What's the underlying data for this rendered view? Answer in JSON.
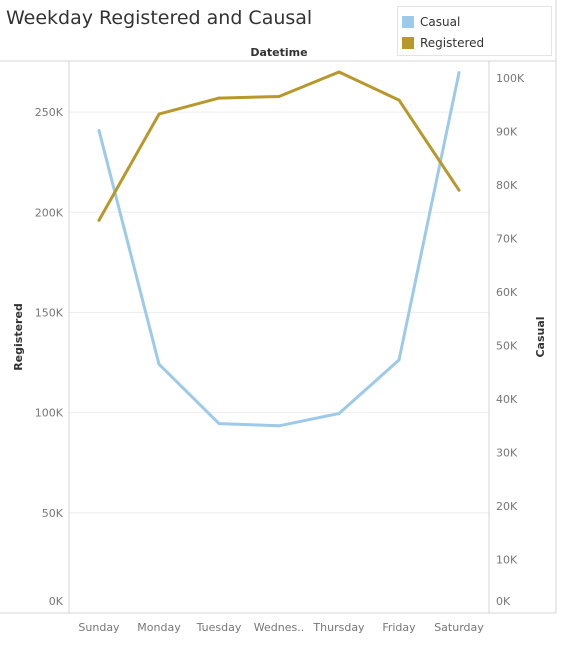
{
  "header": {
    "title": "Weekday Registered and Causal"
  },
  "legend": {
    "items": [
      {
        "label": "Casual",
        "color": "#9ecae9"
      },
      {
        "label": "Registered",
        "color": "#b8982a"
      }
    ]
  },
  "chart_data": {
    "type": "line",
    "title": "Weekday Registered and Causal",
    "top_label": "Datetime",
    "categories": [
      "Sunday",
      "Monday",
      "Tuesday",
      "Wednes..",
      "Thursday",
      "Friday",
      "Saturday"
    ],
    "left_axis": {
      "label": "Registered",
      "range": [
        0,
        275000
      ],
      "ticks": [
        0,
        50000,
        100000,
        150000,
        200000,
        250000
      ],
      "tick_labels": [
        "0K",
        "50K",
        "100K",
        "150K",
        "200K",
        "250K"
      ]
    },
    "right_axis": {
      "label": "Casual",
      "range": [
        0,
        103000
      ],
      "ticks": [
        0,
        10000,
        20000,
        30000,
        40000,
        50000,
        60000,
        70000,
        80000,
        90000,
        100000
      ],
      "tick_labels": [
        "0K",
        "10K",
        "20K",
        "30K",
        "40K",
        "50K",
        "60K",
        "70K",
        "80K",
        "90K",
        "100K"
      ]
    },
    "series": [
      {
        "name": "Casual",
        "axis": "right",
        "color": "#9ecae9",
        "values": [
          90200,
          46500,
          35400,
          35000,
          37300,
          47300,
          101000
        ]
      },
      {
        "name": "Registered",
        "axis": "left",
        "color": "#b8982a",
        "values": [
          196000,
          249000,
          257000,
          257800,
          270000,
          256000,
          211000
        ]
      }
    ],
    "grid": true,
    "legend_position": "top-right"
  }
}
